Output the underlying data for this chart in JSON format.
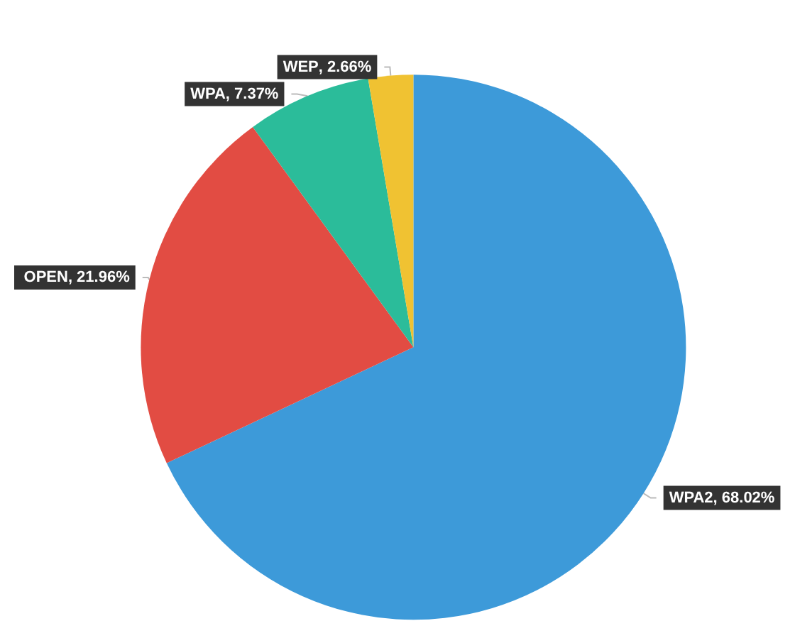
{
  "chart_data": {
    "type": "pie",
    "categories": [
      "WPA2",
      "OPEN",
      "WPA",
      "WEP"
    ],
    "values": [
      68.02,
      21.96,
      7.37,
      2.66
    ],
    "value_labels": [
      ", 68.02%",
      ", 21.96%",
      ", 7.37%",
      ", 2.66%"
    ],
    "colors": [
      "#3d9ad9",
      "#e24c43",
      "#2bbc9a",
      "#f0c232"
    ],
    "legend": false
  }
}
